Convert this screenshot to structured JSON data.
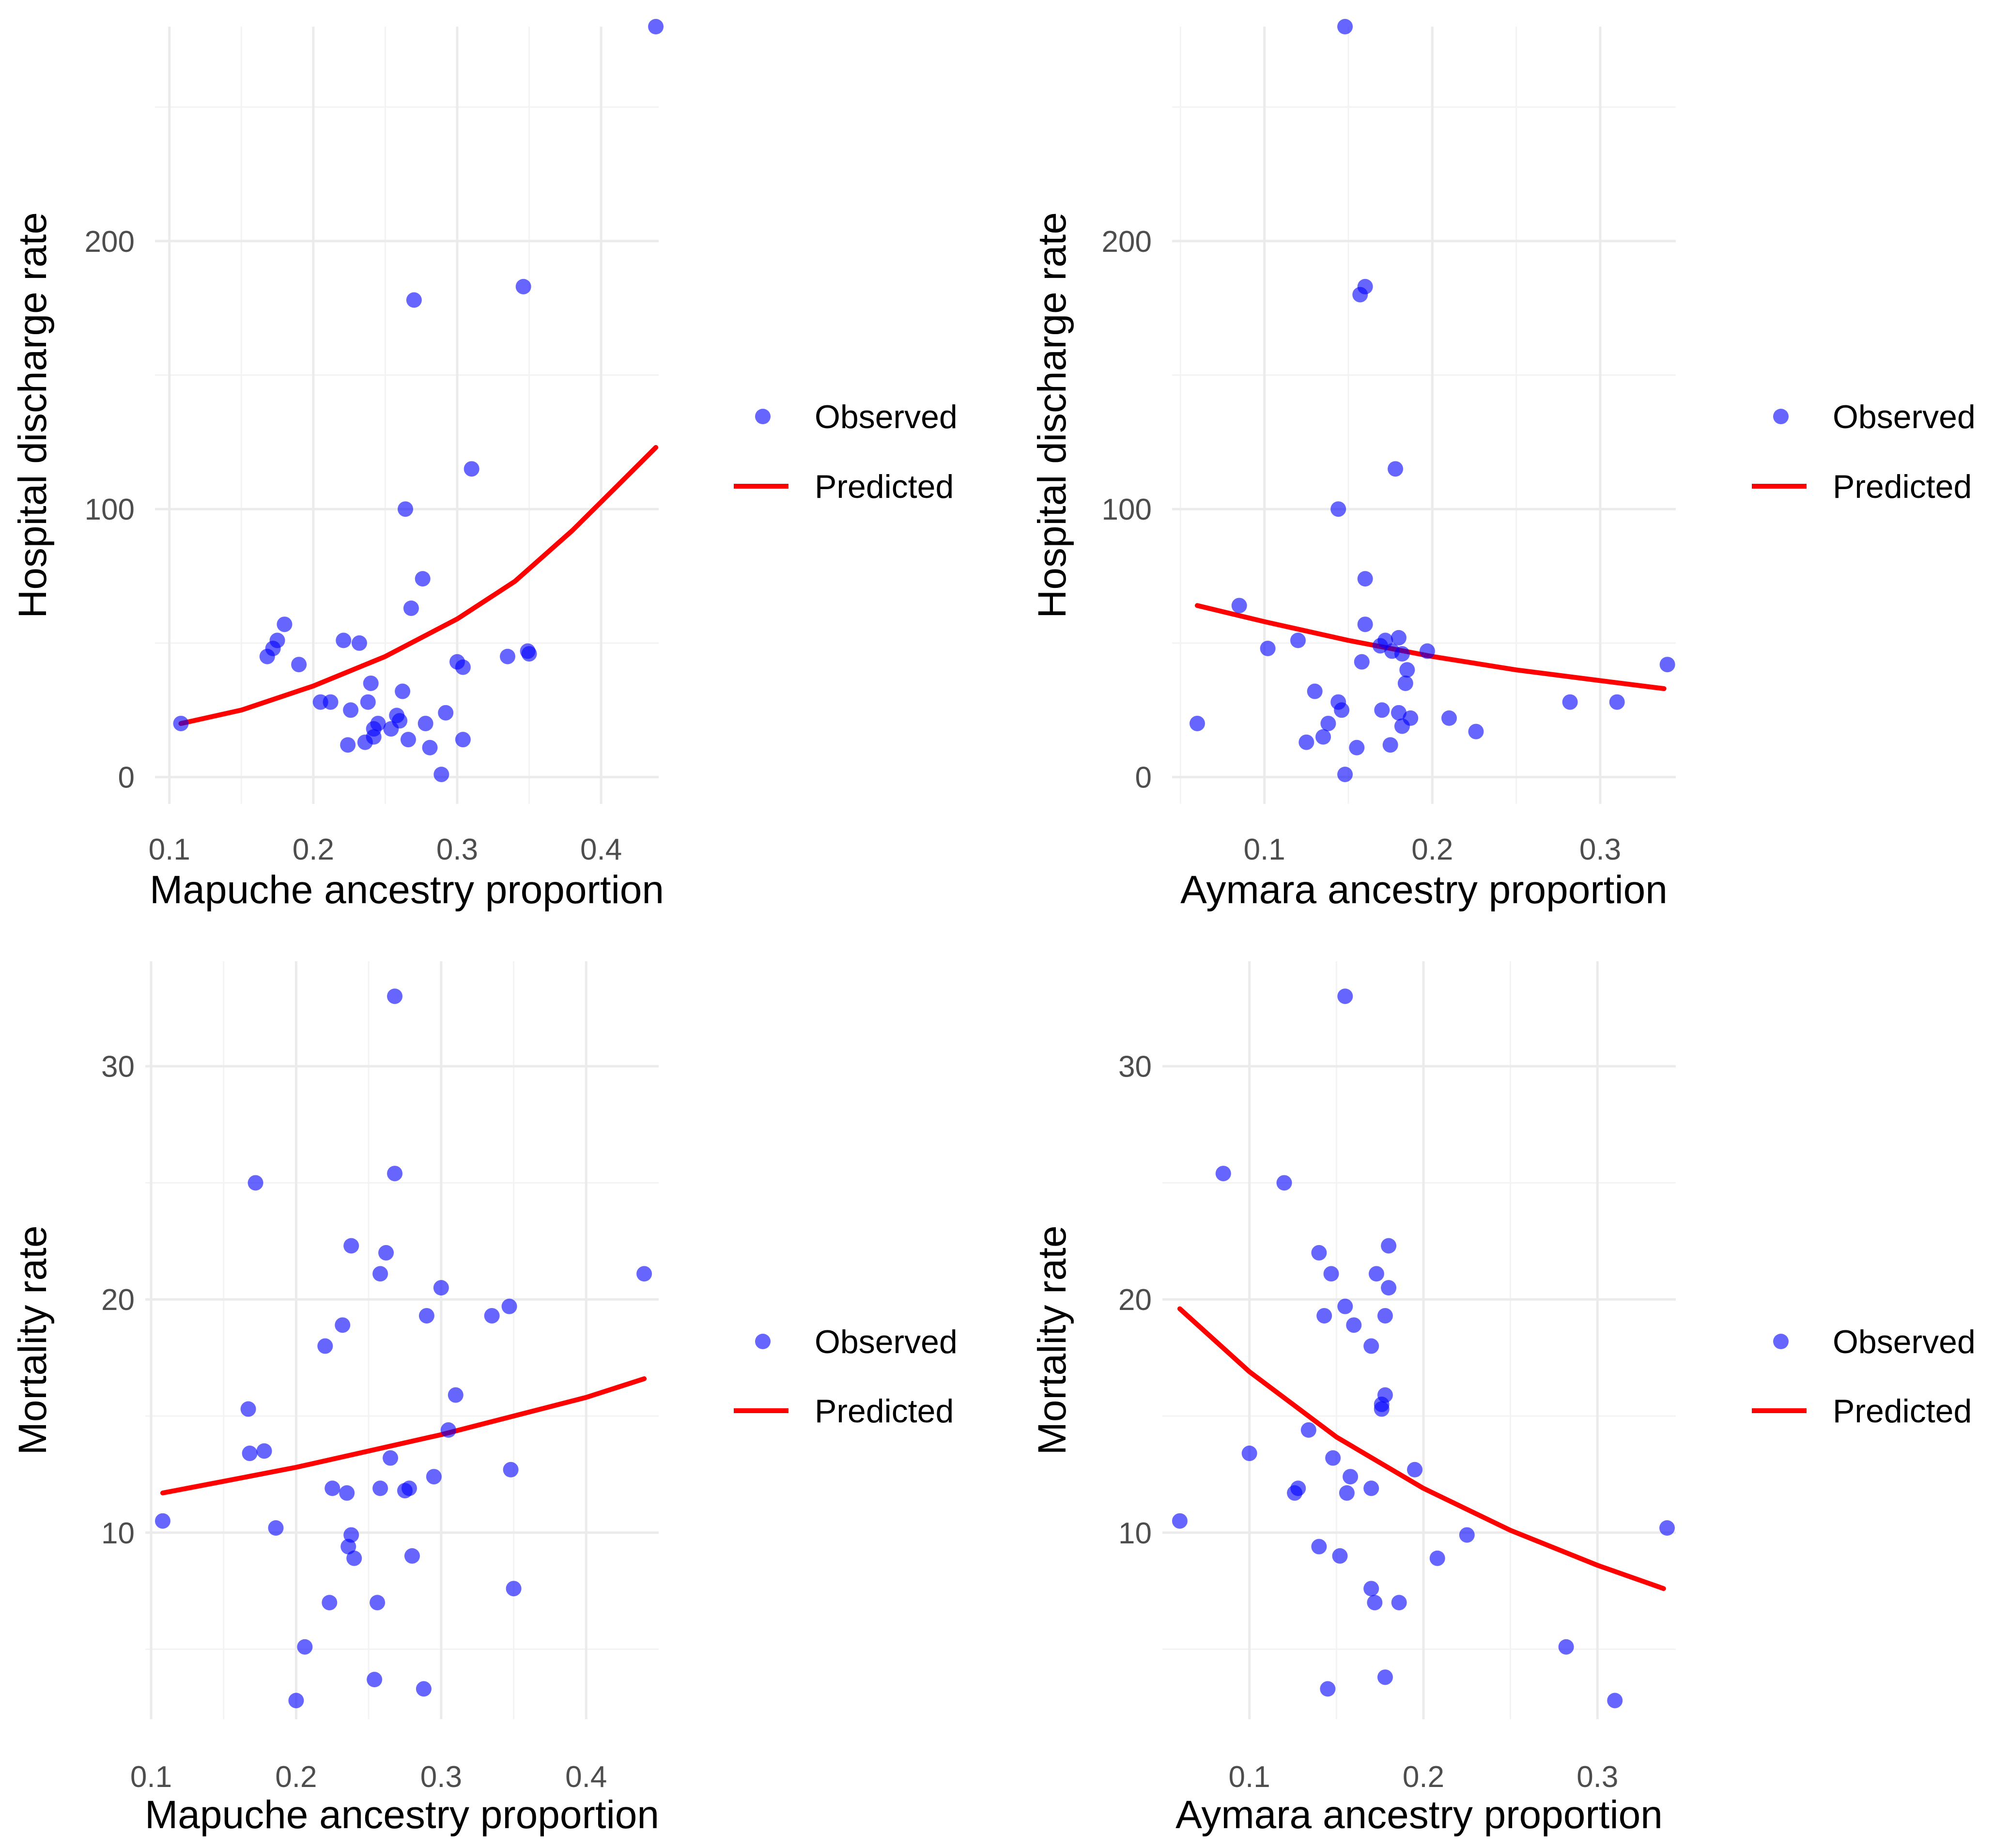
{
  "style": {
    "observed_color": "#0000ff",
    "predicted_color": "#ff0000",
    "grid_color": "#ebebeb",
    "background": "#ffffff"
  },
  "legend": {
    "observed_label": "Observed",
    "predicted_label": "Predicted",
    "placement": "right"
  },
  "chart_data": [
    {
      "type": "scatter",
      "title": "",
      "xlabel": "Mapuche ancestry proportion",
      "ylabel": "Hospital discharge rate",
      "xlim": [
        0.09,
        0.44
      ],
      "ylim": [
        -10,
        280
      ],
      "xticks": [
        0.1,
        0.2,
        0.3,
        0.4
      ],
      "xtick_labels": [
        "0.1",
        "0.2",
        "0.3",
        "0.4"
      ],
      "yticks": [
        0,
        100,
        200
      ],
      "ytick_labels": [
        "0",
        "100",
        "200"
      ],
      "grid": true,
      "series": [
        {
          "name": "Observed",
          "kind": "points",
          "x": [
            0.438,
            0.27,
            0.346,
            0.31,
            0.264,
            0.276,
            0.268,
            0.18,
            0.175,
            0.172,
            0.168,
            0.19,
            0.221,
            0.232,
            0.349,
            0.35,
            0.335,
            0.3,
            0.304,
            0.205,
            0.212,
            0.24,
            0.262,
            0.238,
            0.226,
            0.258,
            0.26,
            0.245,
            0.242,
            0.254,
            0.242,
            0.236,
            0.266,
            0.278,
            0.292,
            0.224,
            0.304,
            0.281,
            0.289,
            0.108
          ],
          "y": [
            280,
            178,
            183,
            115,
            100,
            74,
            63,
            57,
            51,
            48,
            45,
            42,
            51,
            50,
            47,
            46,
            45,
            43,
            41,
            28,
            28,
            35,
            32,
            28,
            25,
            23,
            21,
            20,
            18,
            18,
            15,
            13,
            14,
            20,
            24,
            12,
            14,
            11,
            1,
            20
          ]
        },
        {
          "name": "Predicted",
          "kind": "line",
          "x": [
            0.108,
            0.15,
            0.2,
            0.25,
            0.3,
            0.34,
            0.38,
            0.41,
            0.438
          ],
          "y": [
            20,
            25,
            34,
            45,
            59,
            73,
            92,
            108,
            123
          ]
        }
      ]
    },
    {
      "type": "scatter",
      "title": "",
      "xlabel": "Aymara ancestry proportion",
      "ylabel": "Hospital discharge rate",
      "xlim": [
        0.045,
        0.345
      ],
      "ylim": [
        -10,
        280
      ],
      "xticks": [
        0.1,
        0.2,
        0.3
      ],
      "xtick_labels": [
        "0.1",
        "0.2",
        "0.3"
      ],
      "yticks": [
        0,
        100,
        200
      ],
      "ytick_labels": [
        "0",
        "100",
        "200"
      ],
      "grid": true,
      "series": [
        {
          "name": "Observed",
          "kind": "points",
          "x": [
            0.148,
            0.16,
            0.157,
            0.144,
            0.178,
            0.16,
            0.085,
            0.16,
            0.102,
            0.12,
            0.172,
            0.169,
            0.176,
            0.18,
            0.182,
            0.197,
            0.158,
            0.185,
            0.184,
            0.34,
            0.282,
            0.31,
            0.13,
            0.144,
            0.17,
            0.18,
            0.187,
            0.138,
            0.21,
            0.182,
            0.226,
            0.146,
            0.135,
            0.125,
            0.175,
            0.155,
            0.148,
            0.06
          ],
          "y": [
            280,
            183,
            180,
            100,
            115,
            74,
            64,
            57,
            48,
            51,
            51,
            49,
            47,
            52,
            46,
            47,
            43,
            40,
            35,
            42,
            28,
            28,
            32,
            28,
            25,
            24,
            22,
            20,
            22,
            19,
            17,
            25,
            15,
            13,
            12,
            11,
            1,
            20
          ]
        },
        {
          "name": "Predicted",
          "kind": "line",
          "x": [
            0.06,
            0.1,
            0.15,
            0.2,
            0.25,
            0.3,
            0.338
          ],
          "y": [
            64,
            58,
            51,
            45,
            40,
            36,
            33
          ]
        }
      ]
    },
    {
      "type": "scatter",
      "title": "",
      "xlabel": "Mapuche ancestry proportion",
      "ylabel": "Mortality rate",
      "xlim": [
        0.096,
        0.45
      ],
      "ylim": [
        2,
        34.5
      ],
      "xticks": [
        0.1,
        0.2,
        0.3,
        0.4
      ],
      "xtick_labels": [
        "0.1",
        "0.2",
        "0.3",
        "0.4"
      ],
      "yticks": [
        10,
        20,
        30
      ],
      "ytick_labels": [
        "10",
        "20",
        "30"
      ],
      "grid": true,
      "series": [
        {
          "name": "Observed",
          "kind": "points",
          "x": [
            0.268,
            0.172,
            0.268,
            0.238,
            0.262,
            0.258,
            0.3,
            0.44,
            0.232,
            0.29,
            0.347,
            0.335,
            0.22,
            0.167,
            0.31,
            0.168,
            0.178,
            0.305,
            0.265,
            0.348,
            0.295,
            0.225,
            0.258,
            0.235,
            0.278,
            0.275,
            0.108,
            0.186,
            0.238,
            0.236,
            0.24,
            0.28,
            0.35,
            0.223,
            0.256,
            0.206,
            0.254,
            0.288,
            0.2
          ],
          "y": [
            33,
            25,
            25.4,
            22.3,
            22,
            21.1,
            20.5,
            21.1,
            18.9,
            19.3,
            19.7,
            19.3,
            18,
            15.3,
            15.9,
            13.4,
            13.5,
            14.4,
            13.2,
            12.7,
            12.4,
            11.9,
            11.9,
            11.7,
            11.9,
            11.8,
            10.5,
            10.2,
            9.9,
            9.4,
            8.9,
            9,
            7.6,
            7,
            7,
            5.1,
            3.7,
            3.3,
            2.8
          ]
        },
        {
          "name": "Predicted",
          "kind": "line",
          "x": [
            0.108,
            0.15,
            0.2,
            0.25,
            0.3,
            0.35,
            0.4,
            0.44
          ],
          "y": [
            11.7,
            12.2,
            12.8,
            13.5,
            14.2,
            15,
            15.8,
            16.6
          ]
        }
      ]
    },
    {
      "type": "scatter",
      "title": "",
      "xlabel": "Aymara ancestry proportion",
      "ylabel": "Mortality rate",
      "xlim": [
        0.05,
        0.345
      ],
      "ylim": [
        2,
        34.5
      ],
      "xticks": [
        0.1,
        0.2,
        0.3
      ],
      "xtick_labels": [
        "0.1",
        "0.2",
        "0.3"
      ],
      "yticks": [
        10,
        20,
        30
      ],
      "ytick_labels": [
        "10",
        "20",
        "30"
      ],
      "grid": true,
      "series": [
        {
          "name": "Observed",
          "kind": "points",
          "x": [
            0.155,
            0.085,
            0.12,
            0.14,
            0.18,
            0.147,
            0.173,
            0.18,
            0.155,
            0.143,
            0.16,
            0.178,
            0.178,
            0.17,
            0.176,
            0.176,
            0.134,
            0.1,
            0.148,
            0.195,
            0.158,
            0.17,
            0.156,
            0.128,
            0.126,
            0.06,
            0.225,
            0.14,
            0.152,
            0.208,
            0.17,
            0.172,
            0.186,
            0.282,
            0.178,
            0.145,
            0.31,
            0.34
          ],
          "y": [
            33,
            25.4,
            25,
            22,
            22.3,
            21.1,
            21.1,
            20.5,
            19.7,
            19.3,
            18.9,
            19.3,
            15.9,
            18,
            15.3,
            15.5,
            14.4,
            13.4,
            13.2,
            12.7,
            12.4,
            11.9,
            11.7,
            11.9,
            11.7,
            10.5,
            9.9,
            9.4,
            9,
            8.9,
            7.6,
            7,
            7,
            5.1,
            3.8,
            3.3,
            2.8,
            10.2
          ]
        },
        {
          "name": "Predicted",
          "kind": "line",
          "x": [
            0.06,
            0.1,
            0.15,
            0.2,
            0.25,
            0.3,
            0.338
          ],
          "y": [
            19.6,
            16.9,
            14.1,
            11.9,
            10.1,
            8.6,
            7.6
          ]
        }
      ]
    }
  ]
}
